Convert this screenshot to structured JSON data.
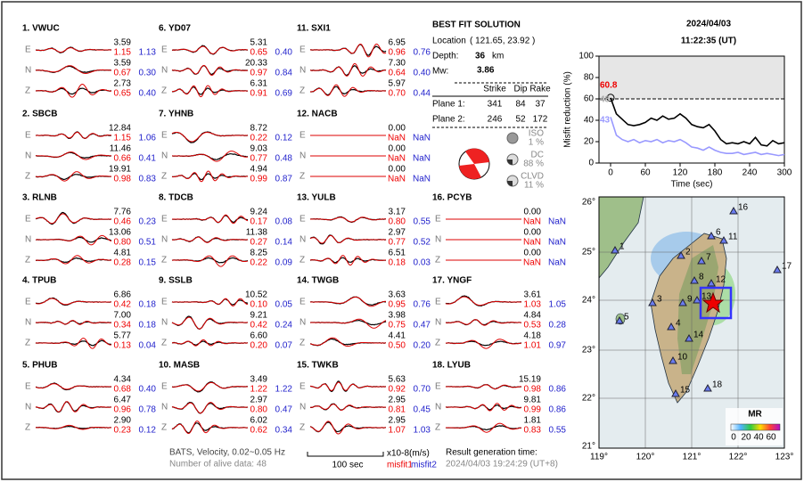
{
  "header": {
    "date": "2024/04/03",
    "time": "11:22:35  (UT)"
  },
  "stations": [
    {
      "label": "1.  VWUC",
      "traces": [
        {
          "comp": "E",
          "amp": "3.59",
          "m1": "1.15",
          "m2": "1.13"
        },
        {
          "comp": "N",
          "amp": "3.59",
          "m1": "0.67",
          "m2": "0.30"
        },
        {
          "comp": "Z",
          "amp": "2.73",
          "m1": "0.65",
          "m2": "0.40"
        }
      ]
    },
    {
      "label": "2.  SBCB",
      "traces": [
        {
          "comp": "E",
          "amp": "12.84",
          "m1": "1.15",
          "m2": "1.06"
        },
        {
          "comp": "N",
          "amp": "11.46",
          "m1": "0.66",
          "m2": "0.41"
        },
        {
          "comp": "Z",
          "amp": "19.91",
          "m1": "0.98",
          "m2": "0.83"
        }
      ]
    },
    {
      "label": "3.  RLNB",
      "traces": [
        {
          "comp": "E",
          "amp": "7.76",
          "m1": "0.46",
          "m2": "0.23"
        },
        {
          "comp": "N",
          "amp": "13.06",
          "m1": "0.80",
          "m2": "0.51"
        },
        {
          "comp": "Z",
          "amp": "4.81",
          "m1": "0.28",
          "m2": "0.15"
        }
      ]
    },
    {
      "label": "4.  TPUB",
      "traces": [
        {
          "comp": "E",
          "amp": "6.86",
          "m1": "0.42",
          "m2": "0.18"
        },
        {
          "comp": "N",
          "amp": "7.00",
          "m1": "0.34",
          "m2": "0.18"
        },
        {
          "comp": "Z",
          "amp": "5.77",
          "m1": "0.13",
          "m2": "0.04"
        }
      ]
    },
    {
      "label": "5.  PHUB",
      "traces": [
        {
          "comp": "E",
          "amp": "4.34",
          "m1": "0.68",
          "m2": "0.40"
        },
        {
          "comp": "N",
          "amp": "6.47",
          "m1": "0.96",
          "m2": "0.78"
        },
        {
          "comp": "Z",
          "amp": "2.90",
          "m1": "0.23",
          "m2": "0.12"
        }
      ]
    },
    {
      "label": "6.  YD07",
      "traces": [
        {
          "comp": "E",
          "amp": "5.31",
          "m1": "0.65",
          "m2": "0.40"
        },
        {
          "comp": "N",
          "amp": "20.33",
          "m1": "0.97",
          "m2": "0.84"
        },
        {
          "comp": "Z",
          "amp": "6.31",
          "m1": "0.91",
          "m2": "0.69"
        }
      ]
    },
    {
      "label": "7.  YHNB",
      "traces": [
        {
          "comp": "E",
          "amp": "8.72",
          "m1": "0.22",
          "m2": "0.12"
        },
        {
          "comp": "N",
          "amp": "9.03",
          "m1": "0.77",
          "m2": "0.48"
        },
        {
          "comp": "Z",
          "amp": "4.94",
          "m1": "0.99",
          "m2": "0.87"
        }
      ]
    },
    {
      "label": "8.  TDCB",
      "traces": [
        {
          "comp": "E",
          "amp": "9.24",
          "m1": "0.17",
          "m2": "0.08"
        },
        {
          "comp": "N",
          "amp": "11.38",
          "m1": "0.27",
          "m2": "0.14"
        },
        {
          "comp": "Z",
          "amp": "8.25",
          "m1": "0.22",
          "m2": "0.09"
        }
      ]
    },
    {
      "label": "9.  SSLB",
      "traces": [
        {
          "comp": "E",
          "amp": "10.52",
          "m1": "0.10",
          "m2": "0.05"
        },
        {
          "comp": "N",
          "amp": "9.21",
          "m1": "0.42",
          "m2": "0.24"
        },
        {
          "comp": "Z",
          "amp": "6.60",
          "m1": "0.20",
          "m2": "0.07"
        }
      ]
    },
    {
      "label": "10.  MASB",
      "traces": [
        {
          "comp": "E",
          "amp": "3.49",
          "m1": "1.22",
          "m2": "1.22"
        },
        {
          "comp": "N",
          "amp": "2.97",
          "m1": "0.80",
          "m2": "0.47"
        },
        {
          "comp": "Z",
          "amp": "6.02",
          "m1": "0.62",
          "m2": "0.34"
        }
      ]
    },
    {
      "label": "11.  SXI1",
      "traces": [
        {
          "comp": "E",
          "amp": "6.95",
          "m1": "0.96",
          "m2": "0.76"
        },
        {
          "comp": "N",
          "amp": "7.30",
          "m1": "0.64",
          "m2": "0.40"
        },
        {
          "comp": "Z",
          "amp": "5.97",
          "m1": "0.70",
          "m2": "0.44"
        }
      ]
    },
    {
      "label": "12.  NACB",
      "traces": [
        {
          "comp": "E",
          "amp": "0.00",
          "m1": "NaN",
          "m2": "NaN"
        },
        {
          "comp": "N",
          "amp": "0.00",
          "m1": "NaN",
          "m2": "NaN"
        },
        {
          "comp": "Z",
          "amp": "0.00",
          "m1": "NaN",
          "m2": "NaN"
        }
      ]
    },
    {
      "label": "13.  YULB",
      "traces": [
        {
          "comp": "E",
          "amp": "3.17",
          "m1": "0.80",
          "m2": "0.55"
        },
        {
          "comp": "N",
          "amp": "2.97",
          "m1": "0.77",
          "m2": "0.52"
        },
        {
          "comp": "Z",
          "amp": "6.51",
          "m1": "0.18",
          "m2": "0.03"
        }
      ]
    },
    {
      "label": "14.  TWGB",
      "traces": [
        {
          "comp": "E",
          "amp": "3.63",
          "m1": "0.95",
          "m2": "0.76"
        },
        {
          "comp": "N",
          "amp": "3.98",
          "m1": "0.75",
          "m2": "0.47"
        },
        {
          "comp": "Z",
          "amp": "4.41",
          "m1": "0.50",
          "m2": "0.20"
        }
      ]
    },
    {
      "label": "15.  TWKB",
      "traces": [
        {
          "comp": "E",
          "amp": "5.63",
          "m1": "0.92",
          "m2": "0.70"
        },
        {
          "comp": "N",
          "amp": "2.95",
          "m1": "0.81",
          "m2": "0.45"
        },
        {
          "comp": "Z",
          "amp": "2.95",
          "m1": "1.07",
          "m2": "1.03"
        }
      ]
    },
    {
      "label": "16.  PCYB",
      "traces": [
        {
          "comp": "E",
          "amp": "0.00",
          "m1": "NaN",
          "m2": "NaN"
        },
        {
          "comp": "N",
          "amp": "0.00",
          "m1": "NaN",
          "m2": "NaN"
        },
        {
          "comp": "Z",
          "amp": "0.00",
          "m1": "NaN",
          "m2": "NaN"
        }
      ]
    },
    {
      "label": "17.  YNGF",
      "traces": [
        {
          "comp": "E",
          "amp": "3.61",
          "m1": "1.03",
          "m2": "1.05"
        },
        {
          "comp": "N",
          "amp": "4.84",
          "m1": "0.53",
          "m2": "0.28"
        },
        {
          "comp": "Z",
          "amp": "4.18",
          "m1": "1.01",
          "m2": "0.97"
        }
      ]
    },
    {
      "label": "18.  LYUB",
      "traces": [
        {
          "comp": "E",
          "amp": "15.19",
          "m1": "0.98",
          "m2": "0.86"
        },
        {
          "comp": "N",
          "amp": "9.81",
          "m1": "0.99",
          "m2": "0.86"
        },
        {
          "comp": "Z",
          "amp": "1.81",
          "m1": "0.83",
          "m2": "0.55"
        }
      ]
    }
  ],
  "solution": {
    "title": "BEST FIT SOLUTION",
    "location_label": "Location",
    "location": "( 121.65, 23.92 )",
    "depth_label": "Depth:",
    "depth": 36,
    "depth_unit": "km",
    "mw_label": "Mw:",
    "mw": 3.86,
    "headers": [
      "Strike",
      "Dip",
      "Rake"
    ],
    "planes": [
      {
        "label": "Plane 1:",
        "values": [
          341,
          84,
          37
        ]
      },
      {
        "label": "Plane 2:",
        "values": [
          246,
          52,
          172
        ]
      }
    ],
    "components": [
      {
        "name": "ISO",
        "value": "1 %"
      },
      {
        "name": "DC",
        "value": "88 %"
      },
      {
        "name": "CLVD",
        "value": "11 %"
      }
    ]
  },
  "chart_data": {
    "type": "line",
    "xlabel": "Time (sec)",
    "ylabel": "Misfit reduction (%)",
    "x": [
      0,
      10,
      20,
      30,
      40,
      50,
      60,
      70,
      80,
      90,
      100,
      110,
      120,
      130,
      140,
      150,
      160,
      170,
      180,
      190,
      200,
      210,
      220,
      230,
      240,
      250,
      260,
      270,
      280,
      290,
      300
    ],
    "series": [
      {
        "color": "#000000",
        "values": [
          61,
          46,
          41,
          36,
          35,
          36,
          38,
          42,
          40,
          44,
          41,
          42,
          46,
          42,
          36,
          34,
          33,
          36,
          30,
          22,
          18,
          19,
          18,
          20,
          18,
          24,
          17,
          16,
          21,
          18,
          19
        ]
      },
      {
        "color": "#9999ff",
        "values": [
          43,
          26,
          22,
          20,
          22,
          19,
          21,
          20,
          22,
          19,
          21,
          20,
          22,
          19,
          15,
          14,
          12,
          15,
          12,
          10,
          9,
          9,
          10,
          8,
          9,
          10,
          8,
          9,
          8,
          7,
          8
        ]
      }
    ],
    "xlim": [
      -20,
      300
    ],
    "xticks": [
      0,
      60,
      120,
      180,
      240,
      300
    ],
    "ylim": [
      0,
      100
    ],
    "yticks": [
      0,
      20,
      40,
      60,
      80,
      100
    ],
    "reference_line": 60,
    "annotations": [
      "60.8",
      "48",
      "43"
    ]
  },
  "map": {
    "lon_ticks": [
      "119°",
      "120°",
      "121°",
      "122°",
      "123°"
    ],
    "lat_ticks": [
      "26°",
      "25°",
      "24°",
      "23°",
      "22°",
      "21°"
    ],
    "stations": [
      "1",
      "2",
      "3",
      "4",
      "5",
      "6",
      "7",
      "8",
      "9",
      "10",
      "11",
      "12",
      "13",
      "14",
      "15",
      "16",
      "17",
      "18"
    ],
    "colorbar_title": "MR",
    "colorbar_ticks": [
      "0",
      "20",
      "40",
      "60"
    ]
  },
  "footer": {
    "filter": "BATS, Velocity, 0.02~0.05 Hz",
    "alive": "Number of alive data: 48",
    "scale": "100 sec",
    "units": "x10-8(m/s)",
    "misfit1": "misfit1",
    "misfit2": "misfit2",
    "gen_label": "Result generation time:",
    "gen_time": "2024/04/03 19:24:29 (UT+8)"
  }
}
